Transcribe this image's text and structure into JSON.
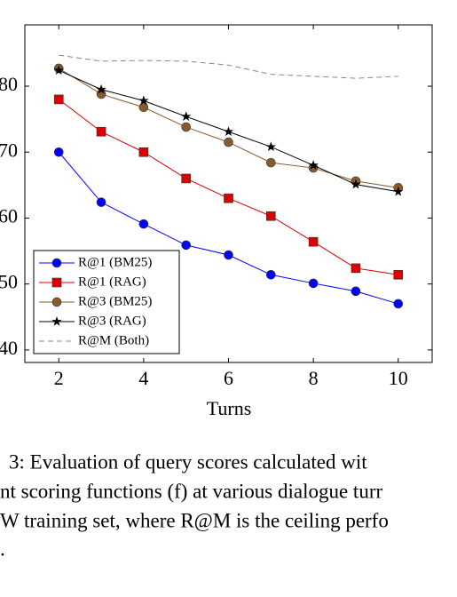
{
  "chart_data": {
    "type": "line",
    "x_label": "Turns",
    "x": [
      2,
      3,
      4,
      5,
      6,
      7,
      8,
      9,
      10
    ],
    "xlim": [
      1.2,
      10.8
    ],
    "xticks": [
      2,
      4,
      6,
      8,
      10
    ],
    "ylim": [
      38.1,
      89.3
    ],
    "yticks": [
      40,
      50,
      60,
      70,
      80
    ],
    "grid": false,
    "legend": "lower left",
    "series": [
      {
        "name": "R@1 (BM25)",
        "color": "#0000ff",
        "marker": "circle",
        "values": [
          70.0,
          62.4,
          59.1,
          55.9,
          54.4,
          51.4,
          50.1,
          48.9,
          47.0
        ]
      },
      {
        "name": "R@1 (RAG)",
        "color": "#dd0000",
        "marker": "square",
        "values": [
          78.0,
          73.1,
          70.0,
          66.0,
          63.0,
          60.3,
          56.4,
          52.4,
          51.4
        ]
      },
      {
        "name": "R@3 (BM25)",
        "color": "#8b5a2b",
        "marker": "circle",
        "values": [
          82.7,
          78.8,
          76.8,
          73.8,
          71.5,
          68.4,
          67.6,
          65.6,
          64.6
        ]
      },
      {
        "name": "R@3 (RAG)",
        "color": "#000000",
        "marker": "star",
        "values": [
          82.4,
          79.5,
          77.8,
          75.4,
          73.1,
          70.8,
          68.0,
          65.1,
          64.0
        ]
      },
      {
        "name": "R@M (Both)",
        "color": "#888888",
        "marker": "none",
        "dashed": true,
        "values": [
          84.7,
          83.8,
          83.9,
          83.8,
          83.2,
          81.8,
          81.5,
          81.2,
          81.5
        ]
      }
    ]
  },
  "caption": [
    "3: Evaluation of query scores calculated wit",
    "nt scoring functions (f) at various dialogue turr",
    "W training set, where R@M is the ceiling perfo",
    "."
  ]
}
